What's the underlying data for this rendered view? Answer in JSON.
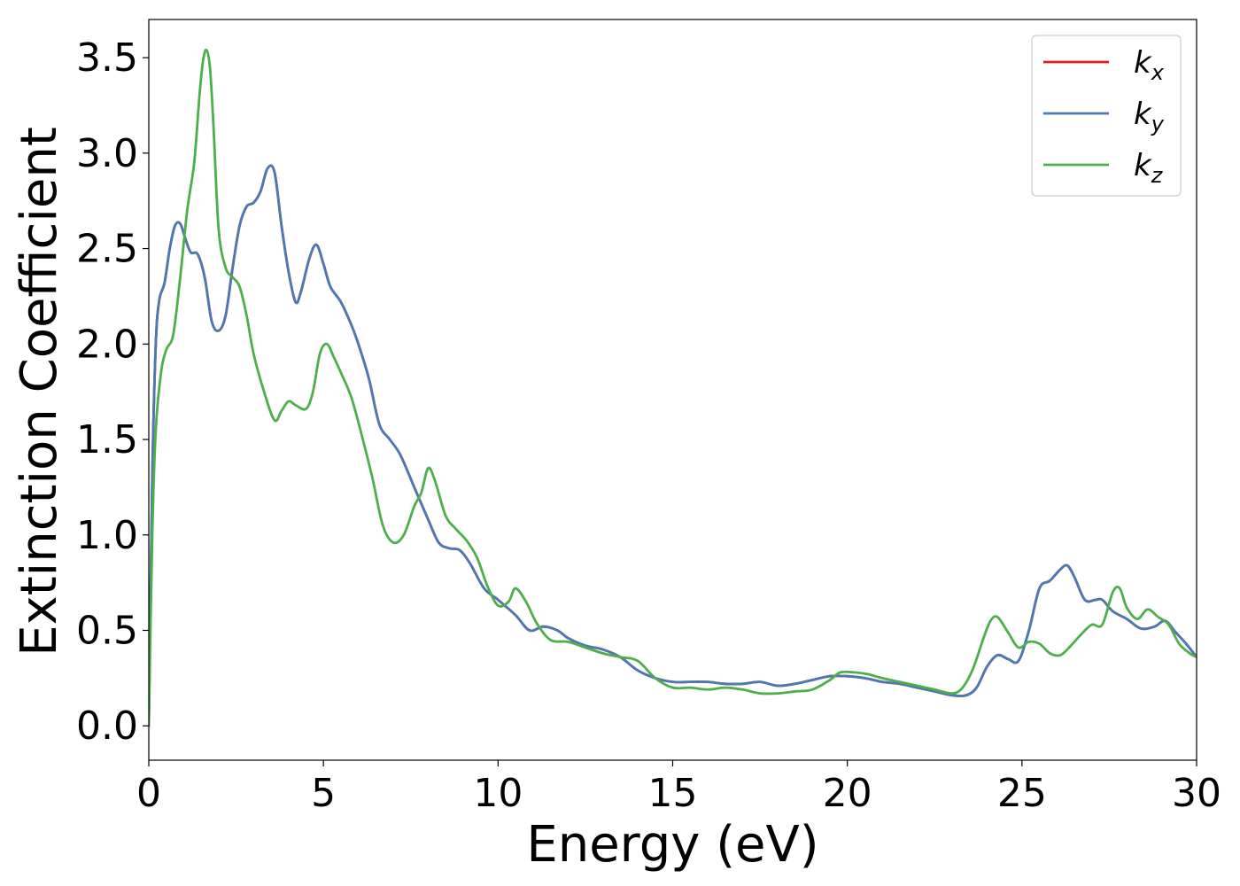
{
  "chart_data": {
    "type": "line",
    "title": "",
    "xlabel": "Energy (eV)",
    "ylabel": "Extinction Coefficient",
    "xlim": [
      0,
      30
    ],
    "ylim": [
      -0.18,
      3.7
    ],
    "xticks": [
      0,
      5,
      10,
      15,
      20,
      25,
      30
    ],
    "xtick_labels": [
      "0",
      "5",
      "10",
      "15",
      "20",
      "25",
      "30"
    ],
    "yticks": [
      0.0,
      0.5,
      1.0,
      1.5,
      2.0,
      2.5,
      3.0,
      3.5
    ],
    "ytick_labels": [
      "0.0",
      "0.5",
      "1.0",
      "1.5",
      "2.0",
      "2.5",
      "3.0",
      "3.5"
    ],
    "grid": false,
    "legend_position": "top-right",
    "series": [
      {
        "name": "k",
        "subscript": "x",
        "color": "#e41a1c",
        "x": [
          0,
          0.1,
          0.2,
          0.3,
          0.45,
          0.6,
          0.75,
          0.9,
          1.05,
          1.2,
          1.4,
          1.6,
          1.8,
          2.0,
          2.2,
          2.4,
          2.6,
          2.8,
          3.0,
          3.2,
          3.4,
          3.6,
          3.8,
          4.0,
          4.2,
          4.35,
          4.6,
          4.8,
          5.0,
          5.2,
          5.5,
          5.8,
          6.0,
          6.3,
          6.6,
          6.9,
          7.2,
          7.6,
          8.0,
          8.3,
          8.6,
          8.9,
          9.2,
          9.6,
          10.0,
          10.5,
          10.9,
          11.3,
          11.7,
          12.0,
          12.5,
          13.0,
          13.5,
          14.0,
          14.5,
          15.0,
          15.5,
          16.0,
          16.5,
          17.0,
          17.5,
          18.0,
          18.5,
          19.0,
          19.5,
          20.0,
          20.5,
          21.0,
          21.5,
          22.0,
          22.5,
          23.0,
          23.4,
          23.7,
          24.0,
          24.3,
          24.6,
          24.9,
          25.2,
          25.5,
          25.8,
          26.1,
          26.3,
          26.5,
          26.8,
          27.1,
          27.3,
          27.6,
          28.0,
          28.4,
          28.8,
          29.1,
          29.4,
          29.7,
          30.0
        ],
        "values": [
          0.0,
          1.3,
          2.0,
          2.23,
          2.32,
          2.5,
          2.62,
          2.63,
          2.55,
          2.48,
          2.47,
          2.35,
          2.12,
          2.07,
          2.15,
          2.4,
          2.62,
          2.72,
          2.74,
          2.8,
          2.92,
          2.9,
          2.62,
          2.38,
          2.22,
          2.27,
          2.45,
          2.52,
          2.42,
          2.3,
          2.22,
          2.1,
          2.0,
          1.82,
          1.58,
          1.5,
          1.42,
          1.25,
          1.08,
          0.96,
          0.93,
          0.92,
          0.85,
          0.72,
          0.66,
          0.58,
          0.5,
          0.52,
          0.5,
          0.46,
          0.42,
          0.4,
          0.36,
          0.29,
          0.25,
          0.23,
          0.23,
          0.23,
          0.22,
          0.22,
          0.23,
          0.21,
          0.22,
          0.24,
          0.26,
          0.26,
          0.25,
          0.23,
          0.22,
          0.2,
          0.18,
          0.16,
          0.16,
          0.2,
          0.31,
          0.37,
          0.35,
          0.34,
          0.5,
          0.72,
          0.76,
          0.82,
          0.84,
          0.78,
          0.66,
          0.66,
          0.66,
          0.6,
          0.56,
          0.51,
          0.52,
          0.55,
          0.49,
          0.43,
          0.36
        ]
      },
      {
        "name": "k",
        "subscript": "y",
        "color": "#4a7ab5",
        "x": [
          0,
          0.1,
          0.2,
          0.3,
          0.45,
          0.6,
          0.75,
          0.9,
          1.05,
          1.2,
          1.4,
          1.6,
          1.8,
          2.0,
          2.2,
          2.4,
          2.6,
          2.8,
          3.0,
          3.2,
          3.4,
          3.6,
          3.8,
          4.0,
          4.2,
          4.35,
          4.6,
          4.8,
          5.0,
          5.2,
          5.5,
          5.8,
          6.0,
          6.3,
          6.6,
          6.9,
          7.2,
          7.6,
          8.0,
          8.3,
          8.6,
          8.9,
          9.2,
          9.6,
          10.0,
          10.5,
          10.9,
          11.3,
          11.7,
          12.0,
          12.5,
          13.0,
          13.5,
          14.0,
          14.5,
          15.0,
          15.5,
          16.0,
          16.5,
          17.0,
          17.5,
          18.0,
          18.5,
          19.0,
          19.5,
          20.0,
          20.5,
          21.0,
          21.5,
          22.0,
          22.5,
          23.0,
          23.4,
          23.7,
          24.0,
          24.3,
          24.6,
          24.9,
          25.2,
          25.5,
          25.8,
          26.1,
          26.3,
          26.5,
          26.8,
          27.1,
          27.3,
          27.6,
          28.0,
          28.4,
          28.8,
          29.1,
          29.4,
          29.7,
          30.0
        ],
        "values": [
          0.0,
          1.3,
          2.0,
          2.23,
          2.32,
          2.5,
          2.62,
          2.63,
          2.55,
          2.48,
          2.47,
          2.35,
          2.12,
          2.07,
          2.15,
          2.4,
          2.62,
          2.72,
          2.74,
          2.8,
          2.92,
          2.9,
          2.62,
          2.38,
          2.22,
          2.27,
          2.45,
          2.52,
          2.42,
          2.3,
          2.22,
          2.1,
          2.0,
          1.82,
          1.58,
          1.5,
          1.42,
          1.25,
          1.08,
          0.96,
          0.93,
          0.92,
          0.85,
          0.72,
          0.66,
          0.58,
          0.5,
          0.52,
          0.5,
          0.46,
          0.42,
          0.4,
          0.36,
          0.29,
          0.25,
          0.23,
          0.23,
          0.23,
          0.22,
          0.22,
          0.23,
          0.21,
          0.22,
          0.24,
          0.26,
          0.26,
          0.25,
          0.23,
          0.22,
          0.2,
          0.18,
          0.16,
          0.16,
          0.2,
          0.31,
          0.37,
          0.35,
          0.34,
          0.5,
          0.72,
          0.76,
          0.82,
          0.84,
          0.78,
          0.66,
          0.66,
          0.66,
          0.6,
          0.56,
          0.51,
          0.52,
          0.55,
          0.49,
          0.43,
          0.36
        ]
      },
      {
        "name": "k",
        "subscript": "z",
        "color": "#4daf4a",
        "x": [
          0,
          0.1,
          0.2,
          0.35,
          0.5,
          0.7,
          0.9,
          1.1,
          1.3,
          1.45,
          1.55,
          1.65,
          1.75,
          1.85,
          2.0,
          2.2,
          2.4,
          2.6,
          2.8,
          3.0,
          3.3,
          3.6,
          3.8,
          4.0,
          4.2,
          4.5,
          4.7,
          4.9,
          5.1,
          5.3,
          5.5,
          5.8,
          6.1,
          6.4,
          6.7,
          7.0,
          7.3,
          7.6,
          7.8,
          8.0,
          8.2,
          8.5,
          8.8,
          9.1,
          9.4,
          9.7,
          10.0,
          10.3,
          10.5,
          10.8,
          11.1,
          11.5,
          12.0,
          12.5,
          13.0,
          13.5,
          14.0,
          14.5,
          15.0,
          15.5,
          16.0,
          16.5,
          17.0,
          17.5,
          18.0,
          18.5,
          19.0,
          19.5,
          19.8,
          20.2,
          20.6,
          21.0,
          21.5,
          22.0,
          22.5,
          23.0,
          23.3,
          23.6,
          23.9,
          24.1,
          24.3,
          24.6,
          24.9,
          25.2,
          25.5,
          25.8,
          26.1,
          26.4,
          26.7,
          27.0,
          27.3,
          27.6,
          27.8,
          28.0,
          28.3,
          28.6,
          28.9,
          29.2,
          29.5,
          29.8,
          30.0
        ],
        "values": [
          0.0,
          1.0,
          1.55,
          1.85,
          1.97,
          2.05,
          2.35,
          2.7,
          2.95,
          3.3,
          3.48,
          3.54,
          3.45,
          3.15,
          2.6,
          2.4,
          2.35,
          2.3,
          2.15,
          1.95,
          1.75,
          1.6,
          1.65,
          1.7,
          1.68,
          1.66,
          1.75,
          1.95,
          2.0,
          1.93,
          1.85,
          1.72,
          1.52,
          1.3,
          1.05,
          0.96,
          1.0,
          1.15,
          1.22,
          1.35,
          1.28,
          1.1,
          1.03,
          0.97,
          0.88,
          0.73,
          0.63,
          0.65,
          0.72,
          0.65,
          0.54,
          0.45,
          0.44,
          0.41,
          0.38,
          0.36,
          0.34,
          0.25,
          0.2,
          0.2,
          0.19,
          0.2,
          0.19,
          0.17,
          0.17,
          0.18,
          0.19,
          0.24,
          0.28,
          0.28,
          0.27,
          0.25,
          0.23,
          0.21,
          0.19,
          0.17,
          0.2,
          0.3,
          0.46,
          0.55,
          0.57,
          0.49,
          0.41,
          0.44,
          0.43,
          0.38,
          0.37,
          0.42,
          0.48,
          0.53,
          0.53,
          0.7,
          0.72,
          0.62,
          0.56,
          0.61,
          0.57,
          0.53,
          0.43,
          0.38,
          0.36
        ]
      }
    ]
  }
}
